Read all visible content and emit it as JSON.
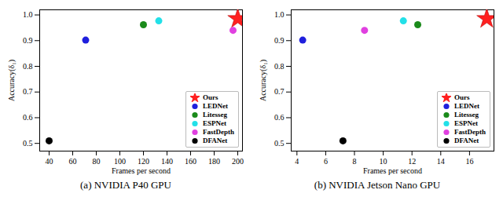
{
  "chart_data": [
    {
      "type": "scatter",
      "title": "(a) NVIDIA P40 GPU",
      "x_label": "Frames per second",
      "y_label": "Accuracy(δ₁)",
      "xlim": [
        32,
        204
      ],
      "xticks": [
        40,
        60,
        80,
        100,
        120,
        140,
        160,
        180,
        200
      ],
      "ylim": [
        0.47,
        1.02
      ],
      "yticks": [
        0.5,
        0.6,
        0.7,
        0.8,
        0.9,
        {
          "value": 1,
          "label": "1.0"
        }
      ],
      "grid": false,
      "legend": "lower right",
      "series": [
        {
          "name": "Ours",
          "color": "#ff2020",
          "marker": "star",
          "x": [
            200
          ],
          "values": [
            0.985
          ]
        },
        {
          "name": "LEDNet",
          "color": "#1f1fdd",
          "marker": "circle",
          "x": [
            71
          ],
          "values": [
            0.902
          ]
        },
        {
          "name": "Litesseg",
          "color": "#1a8a1a",
          "marker": "circle",
          "x": [
            120
          ],
          "values": [
            0.962
          ]
        },
        {
          "name": "ESPNet",
          "color": "#22e0e8",
          "marker": "circle",
          "x": [
            133
          ],
          "values": [
            0.977
          ]
        },
        {
          "name": "FastDepth",
          "color": "#e040e0",
          "marker": "circle",
          "x": [
            196
          ],
          "values": [
            0.94
          ]
        },
        {
          "name": "DFANet",
          "color": "#000000",
          "marker": "circle",
          "x": [
            40
          ],
          "values": [
            0.51
          ]
        }
      ]
    },
    {
      "type": "scatter",
      "title": "(b) NVIDIA Jetson Nano GPU",
      "x_label": "Frames per second",
      "y_label": "Accuracy(δ₁)",
      "xlim": [
        3.6,
        17.7
      ],
      "xticks": [
        4,
        6,
        8,
        10,
        12,
        14,
        16
      ],
      "ylim": [
        0.47,
        1.02
      ],
      "yticks": [
        0.5,
        0.6,
        0.7,
        0.8,
        0.9,
        {
          "value": 1,
          "label": "1.0"
        }
      ],
      "grid": false,
      "legend": "lower right",
      "series": [
        {
          "name": "Ours",
          "color": "#ff2020",
          "marker": "star",
          "x": [
            17.2
          ],
          "values": [
            0.985
          ]
        },
        {
          "name": "LEDNet",
          "color": "#1f1fdd",
          "marker": "circle",
          "x": [
            4.4
          ],
          "values": [
            0.902
          ]
        },
        {
          "name": "Litesseg",
          "color": "#1a8a1a",
          "marker": "circle",
          "x": [
            12.4
          ],
          "values": [
            0.962
          ]
        },
        {
          "name": "ESPNet",
          "color": "#22e0e8",
          "marker": "circle",
          "x": [
            11.4
          ],
          "values": [
            0.977
          ]
        },
        {
          "name": "FastDepth",
          "color": "#e040e0",
          "marker": "circle",
          "x": [
            8.7
          ],
          "values": [
            0.94
          ]
        },
        {
          "name": "DFANet",
          "color": "#000000",
          "marker": "circle",
          "x": [
            7.2
          ],
          "values": [
            0.51
          ]
        }
      ]
    }
  ]
}
